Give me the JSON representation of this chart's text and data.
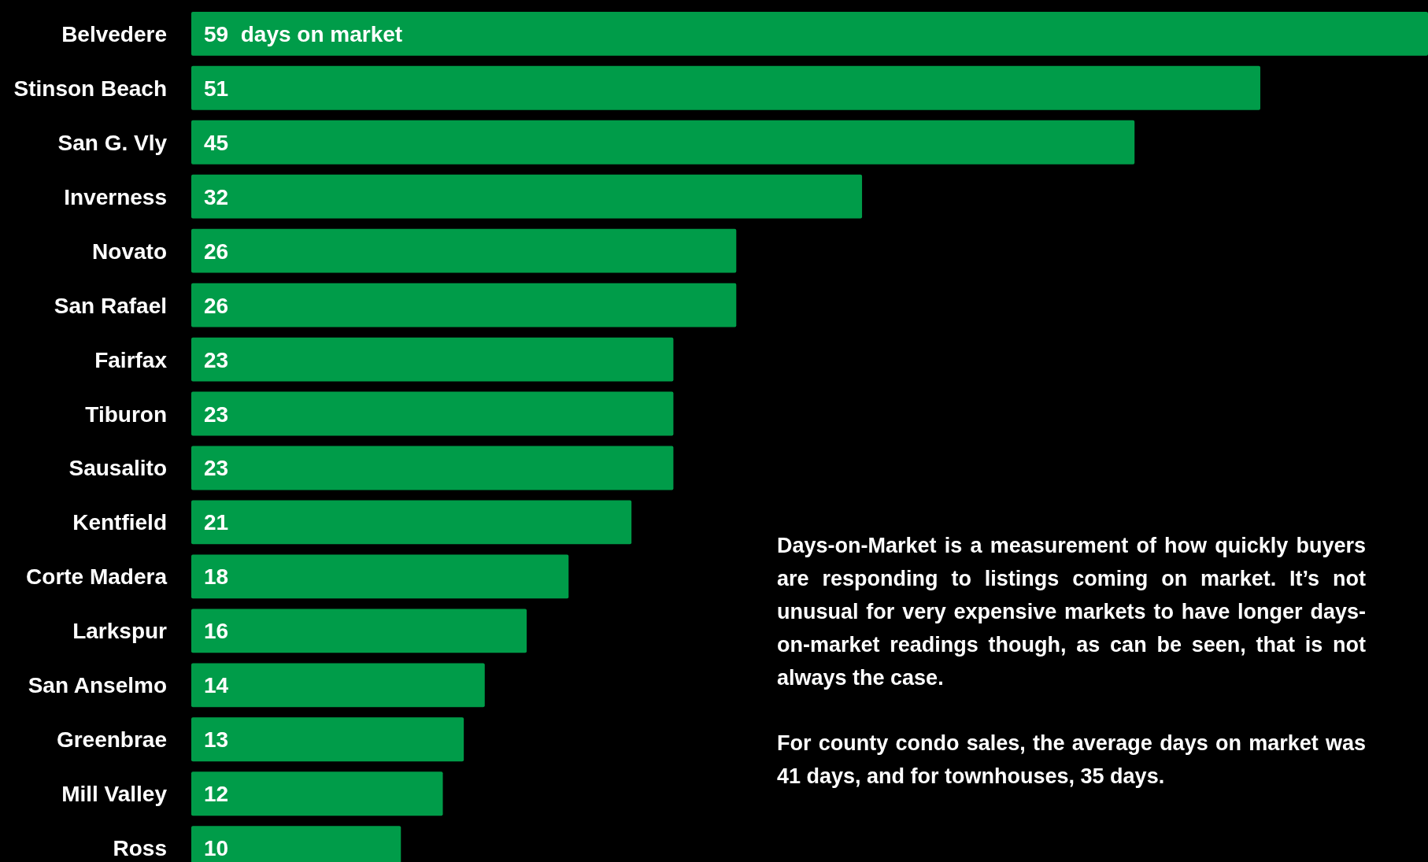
{
  "chart_data": {
    "type": "bar",
    "orientation": "horizontal",
    "categories": [
      "Belvedere",
      "Stinson Beach",
      "San G. Vly",
      "Inverness",
      "Novato",
      "San Rafael",
      "Fairfax",
      "Tiburon",
      "Sausalito",
      "Kentfield",
      "Corte Madera",
      "Larkspur",
      "San Anselmo",
      "Greenbrae",
      "Mill Valley",
      "Ross"
    ],
    "values": [
      59,
      51,
      45,
      32,
      26,
      26,
      23,
      23,
      23,
      21,
      18,
      16,
      14,
      13,
      12,
      10
    ],
    "value_labels": [
      "59  days on market",
      "51",
      "45",
      "32",
      "26",
      "26",
      "23",
      "23",
      "23",
      "21",
      "18",
      "16",
      "14",
      "13",
      "12",
      "10"
    ],
    "color": "#009c49",
    "annotations": [
      "Days-on-Market is a measurement of how quickly buyers are responding to listings coming on market. It’s not unusual for very expensive markets to have longer days-on-market readings though, as can be seen, that is not always the case.",
      "For county condo sales, the average days on market was 41 days, and for townhouses, 35 days."
    ]
  }
}
